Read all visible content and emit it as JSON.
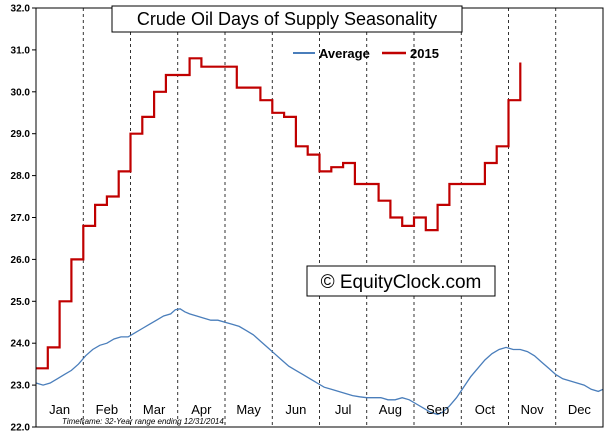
{
  "chart_data": {
    "type": "line",
    "title": "Crude Oil Days of Supply Seasonality",
    "watermark": "© EquityClock.com",
    "footnote": "Timeframe: 32-Year range ending 12/31/2014",
    "xlabel": "",
    "ylabel": "",
    "ylim": [
      22.0,
      32.0
    ],
    "y_ticks": [
      "22.0",
      "23.0",
      "24.0",
      "25.0",
      "26.0",
      "27.0",
      "28.0",
      "29.0",
      "30.0",
      "31.0",
      "32.0"
    ],
    "months": [
      "Jan",
      "Feb",
      "Mar",
      "Apr",
      "May",
      "Jun",
      "Jul",
      "Aug",
      "Sep",
      "Oct",
      "Nov",
      "Dec"
    ],
    "x_unit": "month (0 = Jan 1, 12 = Dec 31)",
    "grid": "vertical dashed at month boundaries",
    "legend_position": "top-right",
    "colors": {
      "average": "#4a7ebb",
      "y2015": "#c00000",
      "grid": "#000000"
    },
    "series": [
      {
        "name": "Average",
        "step": false,
        "points": [
          [
            0.0,
            23.05
          ],
          [
            0.15,
            23.0
          ],
          [
            0.3,
            23.05
          ],
          [
            0.45,
            23.15
          ],
          [
            0.6,
            23.25
          ],
          [
            0.75,
            23.35
          ],
          [
            0.9,
            23.5
          ],
          [
            1.05,
            23.7
          ],
          [
            1.2,
            23.85
          ],
          [
            1.35,
            23.95
          ],
          [
            1.5,
            24.0
          ],
          [
            1.65,
            24.1
          ],
          [
            1.8,
            24.15
          ],
          [
            1.95,
            24.15
          ],
          [
            2.1,
            24.25
          ],
          [
            2.25,
            24.35
          ],
          [
            2.4,
            24.45
          ],
          [
            2.55,
            24.55
          ],
          [
            2.7,
            24.65
          ],
          [
            2.85,
            24.7
          ],
          [
            2.95,
            24.8
          ],
          [
            3.05,
            24.82
          ],
          [
            3.15,
            24.75
          ],
          [
            3.25,
            24.7
          ],
          [
            3.4,
            24.65
          ],
          [
            3.55,
            24.6
          ],
          [
            3.7,
            24.55
          ],
          [
            3.85,
            24.55
          ],
          [
            4.0,
            24.5
          ],
          [
            4.15,
            24.45
          ],
          [
            4.3,
            24.4
          ],
          [
            4.45,
            24.3
          ],
          [
            4.6,
            24.2
          ],
          [
            4.75,
            24.05
          ],
          [
            4.9,
            23.9
          ],
          [
            5.05,
            23.75
          ],
          [
            5.2,
            23.6
          ],
          [
            5.35,
            23.45
          ],
          [
            5.5,
            23.35
          ],
          [
            5.65,
            23.25
          ],
          [
            5.8,
            23.15
          ],
          [
            5.95,
            23.05
          ],
          [
            6.1,
            22.95
          ],
          [
            6.25,
            22.9
          ],
          [
            6.4,
            22.85
          ],
          [
            6.55,
            22.8
          ],
          [
            6.7,
            22.75
          ],
          [
            6.85,
            22.72
          ],
          [
            7.0,
            22.7
          ],
          [
            7.15,
            22.7
          ],
          [
            7.3,
            22.7
          ],
          [
            7.45,
            22.65
          ],
          [
            7.6,
            22.65
          ],
          [
            7.75,
            22.7
          ],
          [
            7.9,
            22.65
          ],
          [
            8.05,
            22.55
          ],
          [
            8.2,
            22.45
          ],
          [
            8.35,
            22.35
          ],
          [
            8.5,
            22.3
          ],
          [
            8.6,
            22.35
          ],
          [
            8.75,
            22.5
          ],
          [
            8.9,
            22.7
          ],
          [
            9.05,
            22.95
          ],
          [
            9.2,
            23.2
          ],
          [
            9.35,
            23.4
          ],
          [
            9.5,
            23.6
          ],
          [
            9.65,
            23.75
          ],
          [
            9.8,
            23.85
          ],
          [
            9.95,
            23.9
          ],
          [
            10.1,
            23.85
          ],
          [
            10.25,
            23.85
          ],
          [
            10.4,
            23.8
          ],
          [
            10.55,
            23.7
          ],
          [
            10.7,
            23.55
          ],
          [
            10.85,
            23.4
          ],
          [
            11.0,
            23.25
          ],
          [
            11.15,
            23.15
          ],
          [
            11.3,
            23.1
          ],
          [
            11.45,
            23.05
          ],
          [
            11.6,
            23.0
          ],
          [
            11.75,
            22.9
          ],
          [
            11.9,
            22.85
          ],
          [
            12.0,
            22.9
          ]
        ]
      },
      {
        "name": "2015",
        "step": true,
        "points": [
          [
            0.0,
            23.4
          ],
          [
            0.25,
            23.9
          ],
          [
            0.5,
            25.0
          ],
          [
            0.75,
            26.0
          ],
          [
            1.0,
            26.8
          ],
          [
            1.25,
            27.3
          ],
          [
            1.5,
            27.5
          ],
          [
            1.75,
            28.1
          ],
          [
            2.0,
            29.0
          ],
          [
            2.25,
            29.4
          ],
          [
            2.5,
            30.0
          ],
          [
            2.75,
            30.4
          ],
          [
            3.0,
            30.4
          ],
          [
            3.25,
            30.8
          ],
          [
            3.5,
            30.6
          ],
          [
            4.0,
            30.6
          ],
          [
            4.25,
            30.1
          ],
          [
            4.75,
            29.8
          ],
          [
            5.0,
            29.5
          ],
          [
            5.25,
            29.4
          ],
          [
            5.5,
            28.7
          ],
          [
            5.75,
            28.5
          ],
          [
            6.0,
            28.1
          ],
          [
            6.25,
            28.2
          ],
          [
            6.5,
            28.3
          ],
          [
            6.75,
            27.8
          ],
          [
            7.25,
            27.4
          ],
          [
            7.5,
            27.0
          ],
          [
            7.75,
            26.8
          ],
          [
            8.0,
            27.0
          ],
          [
            8.25,
            26.7
          ],
          [
            8.5,
            27.3
          ],
          [
            8.75,
            27.8
          ],
          [
            9.5,
            28.3
          ],
          [
            9.75,
            28.7
          ],
          [
            10.0,
            29.8
          ],
          [
            10.25,
            30.7
          ]
        ],
        "end_x": 10.25
      }
    ]
  }
}
